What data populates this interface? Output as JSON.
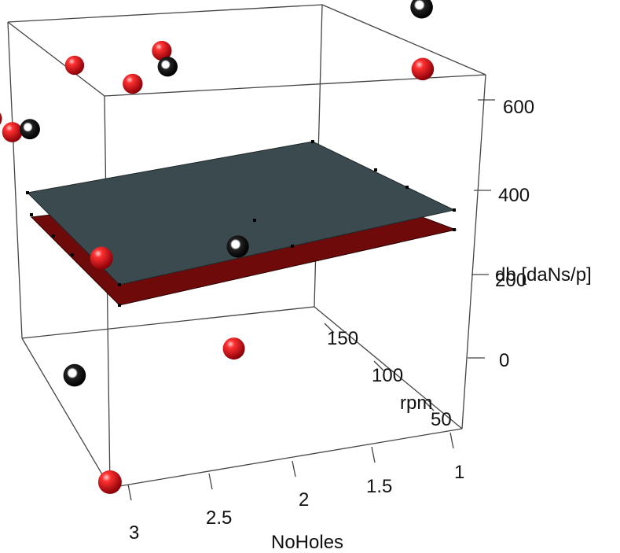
{
  "chart_data": {
    "type": "scatter",
    "projection": "3d",
    "title": "",
    "axes": {
      "x": {
        "label": "NoHoles",
        "range": [
          1,
          3
        ],
        "ticks": [
          "1",
          "1.5",
          "2",
          "2.5",
          "3"
        ]
      },
      "y": {
        "label": "rpm",
        "range": [
          50,
          180
        ],
        "ticks": [
          "50",
          "100",
          "150"
        ]
      },
      "z": {
        "label": "db [daNs/p]",
        "range": [
          -50,
          650
        ],
        "ticks": [
          "0",
          "200",
          "400",
          "600"
        ]
      }
    },
    "series": [
      {
        "color": "#e0101a",
        "points": [
          {
            "x": 3.0,
            "y": 170,
            "z": 450
          },
          {
            "x": 3.0,
            "y": 150,
            "z": 440
          },
          {
            "x": 2.95,
            "y": 140,
            "z": 430
          },
          {
            "x": 2.9,
            "y": 70,
            "z": 320
          },
          {
            "x": 2.4,
            "y": 170,
            "z": 470
          },
          {
            "x": 2.2,
            "y": 150,
            "z": 460
          },
          {
            "x": 2.0,
            "y": 155,
            "z": 500
          },
          {
            "x": 3.0,
            "y": 50,
            "z": -40
          },
          {
            "x": 2.0,
            "y": 95,
            "z": 70
          },
          {
            "x": 1.0,
            "y": 80,
            "z": 540
          }
        ]
      },
      {
        "color": "#111111",
        "points": [
          {
            "x": 2.85,
            "y": 140,
            "z": 430
          },
          {
            "x": 2.0,
            "y": 150,
            "z": 480
          },
          {
            "x": 2.0,
            "y": 90,
            "z": 260
          },
          {
            "x": 3.0,
            "y": 80,
            "z": 100
          },
          {
            "x": 1.0,
            "y": 80,
            "z": 650
          }
        ]
      }
    ],
    "surfaces": [
      {
        "color": "#3b4a4e"
      },
      {
        "color": "#6e0a0a"
      }
    ]
  }
}
